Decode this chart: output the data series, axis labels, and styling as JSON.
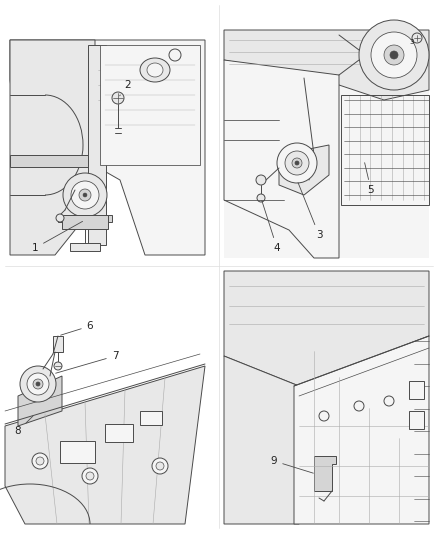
{
  "bg_color": "#ffffff",
  "fig_width": 4.38,
  "fig_height": 5.33,
  "dpi": 100,
  "line_color": "#4a4a4a",
  "line_width": 0.7,
  "label_fontsize": 7.5,
  "divider_color": "#999999",
  "fill_light": "#f5f5f5",
  "fill_mid": "#e8e8e8",
  "fill_dark": "#d5d5d5"
}
